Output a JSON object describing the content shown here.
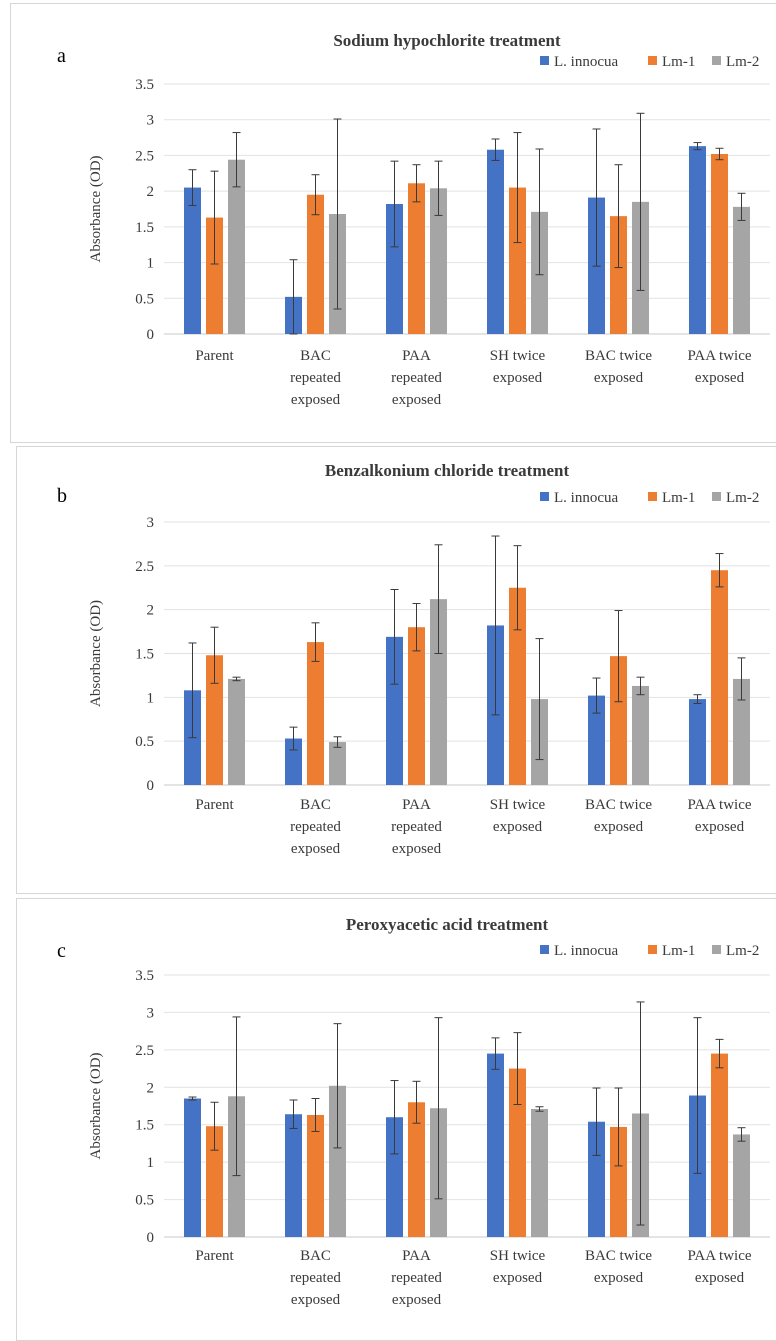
{
  "colors": {
    "L. innocua": "#4472c4",
    "Lm-1": "#ed7d31",
    "Lm-2": "#a5a5a5"
  },
  "chart_data": [
    {
      "type": "bar",
      "panel_label": "a",
      "title": "Sodium hypochlorite treatment",
      "ylabel": "Absorbance (OD)",
      "xlabel": "",
      "ylim": [
        0,
        3.5
      ],
      "yticks": [
        "0",
        "0.5",
        "1",
        "1.5",
        "2",
        "2.5",
        "3",
        "3.5"
      ],
      "ytick_values": [
        0,
        0.5,
        1,
        1.5,
        2,
        2.5,
        3,
        3.5
      ],
      "legend_position": "top-right",
      "grid": true,
      "categories": [
        [
          "Parent"
        ],
        [
          "BAC",
          "repeated",
          "exposed"
        ],
        [
          "PAA",
          "repeated",
          "exposed"
        ],
        [
          "SH twice",
          "exposed"
        ],
        [
          "BAC twice",
          "exposed"
        ],
        [
          "PAA twice",
          "exposed"
        ]
      ],
      "series": [
        {
          "name": "L. innocua",
          "values": [
            2.05,
            0.52,
            1.82,
            2.58,
            1.91,
            2.63
          ],
          "errors": [
            0.25,
            0.52,
            0.6,
            0.15,
            0.96,
            0.05
          ]
        },
        {
          "name": "Lm-1",
          "values": [
            1.63,
            1.95,
            2.11,
            2.05,
            1.65,
            2.52
          ],
          "errors": [
            0.65,
            0.28,
            0.26,
            0.77,
            0.72,
            0.08
          ]
        },
        {
          "name": "Lm-2",
          "values": [
            2.44,
            1.68,
            2.04,
            1.71,
            1.85,
            1.78
          ],
          "errors": [
            0.38,
            1.33,
            0.38,
            0.88,
            1.24,
            0.19
          ]
        }
      ]
    },
    {
      "type": "bar",
      "panel_label": "b",
      "title": "Benzalkonium chloride treatment",
      "ylabel": "Absorbance (OD)",
      "xlabel": "",
      "ylim": [
        0,
        3
      ],
      "yticks": [
        "0",
        "0.5",
        "1",
        "1.5",
        "2",
        "2.5",
        "3"
      ],
      "ytick_values": [
        0,
        0.5,
        1,
        1.5,
        2,
        2.5,
        3
      ],
      "legend_position": "top-right",
      "grid": true,
      "categories": [
        [
          "Parent"
        ],
        [
          "BAC",
          "repeated",
          "exposed"
        ],
        [
          "PAA",
          "repeated",
          "exposed"
        ],
        [
          "SH twice",
          "exposed"
        ],
        [
          "BAC twice",
          "exposed"
        ],
        [
          "PAA twice",
          "exposed"
        ]
      ],
      "series": [
        {
          "name": "L. innocua",
          "values": [
            1.08,
            0.53,
            1.69,
            1.82,
            1.02,
            0.98
          ],
          "errors": [
            0.54,
            0.13,
            0.54,
            1.02,
            0.2,
            0.05
          ]
        },
        {
          "name": "Lm-1",
          "values": [
            1.48,
            1.63,
            1.8,
            2.25,
            1.47,
            2.45
          ],
          "errors": [
            0.32,
            0.22,
            0.27,
            0.48,
            0.52,
            0.19
          ]
        },
        {
          "name": "Lm-2",
          "values": [
            1.21,
            0.49,
            2.12,
            0.98,
            1.13,
            1.21
          ],
          "errors": [
            0.02,
            0.06,
            0.62,
            0.69,
            0.1,
            0.24
          ]
        }
      ]
    },
    {
      "type": "bar",
      "panel_label": "c",
      "title": "Peroxyacetic acid treatment",
      "ylabel": "Absorbance (OD)",
      "xlabel": "",
      "ylim": [
        0,
        3.5
      ],
      "yticks": [
        "0",
        "0.5",
        "1",
        "1.5",
        "2",
        "2.5",
        "3",
        "3.5"
      ],
      "ytick_values": [
        0,
        0.5,
        1,
        1.5,
        2,
        2.5,
        3,
        3.5
      ],
      "legend_position": "top-right",
      "grid": true,
      "categories": [
        [
          "Parent"
        ],
        [
          "BAC",
          "repeated",
          "exposed"
        ],
        [
          "PAA",
          "repeated",
          "exposed"
        ],
        [
          "SH twice",
          "exposed"
        ],
        [
          "BAC twice",
          "exposed"
        ],
        [
          "PAA twice",
          "exposed"
        ]
      ],
      "series": [
        {
          "name": "L. innocua",
          "values": [
            1.85,
            1.64,
            1.6,
            2.45,
            1.54,
            1.89
          ],
          "errors": [
            0.02,
            0.19,
            0.49,
            0.21,
            0.45,
            1.04
          ]
        },
        {
          "name": "Lm-1",
          "values": [
            1.48,
            1.63,
            1.8,
            2.25,
            1.47,
            2.45
          ],
          "errors": [
            0.32,
            0.22,
            0.28,
            0.48,
            0.52,
            0.19
          ]
        },
        {
          "name": "Lm-2",
          "values": [
            1.88,
            2.02,
            1.72,
            1.71,
            1.65,
            1.37
          ],
          "errors": [
            1.06,
            0.83,
            1.21,
            0.03,
            1.49,
            0.09
          ]
        }
      ]
    }
  ]
}
